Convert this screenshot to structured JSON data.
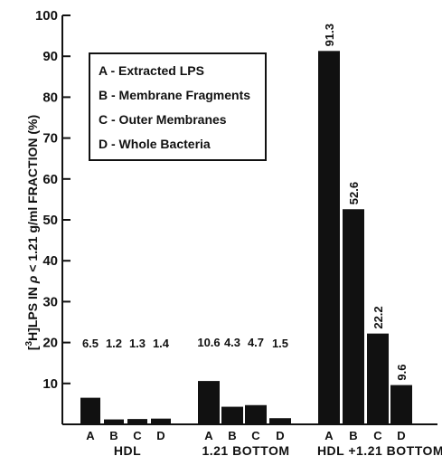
{
  "chart_data": {
    "type": "bar",
    "title": "",
    "xlabel": "",
    "ylabel_prefix": "[",
    "ylabel_sup": "3",
    "ylabel_main": "H]LPS IN",
    "ylabel_rho": "ρ",
    "ylabel_rest": "< 1.21 g/ml FRACTION (%)",
    "ylim": [
      0,
      100
    ],
    "yticks": [
      "10",
      "20",
      "30",
      "40",
      "50",
      "60",
      "70",
      "80",
      "90",
      "100"
    ],
    "grid": false,
    "legend_placement": "top-left",
    "legend": [
      "A - Extracted LPS",
      "B - Membrane Fragments",
      "C - Outer Membranes",
      "D - Whole Bacteria"
    ],
    "groups": [
      {
        "name": "HDL",
        "categories": [
          "A",
          "B",
          "C",
          "D"
        ],
        "values": [
          6.5,
          1.2,
          1.3,
          1.4
        ],
        "labels": [
          "6.5",
          "1.2",
          "1.3",
          "1.4"
        ]
      },
      {
        "name": "1.21 BOTTOM",
        "categories": [
          "A",
          "B",
          "C",
          "D"
        ],
        "values": [
          10.6,
          4.3,
          4.7,
          1.5
        ],
        "labels": [
          "10.6",
          "4.3",
          "4.7",
          "1.5"
        ]
      },
      {
        "name": "HDL +1.21 BOTTOM",
        "categories": [
          "A",
          "B",
          "C",
          "D"
        ],
        "values": [
          91.3,
          52.6,
          22.2,
          9.6
        ],
        "labels": [
          "91.3",
          "52.6",
          "22.2",
          "9.6"
        ]
      }
    ],
    "colors": {
      "bar": "#111111",
      "axis": "#111111"
    }
  }
}
